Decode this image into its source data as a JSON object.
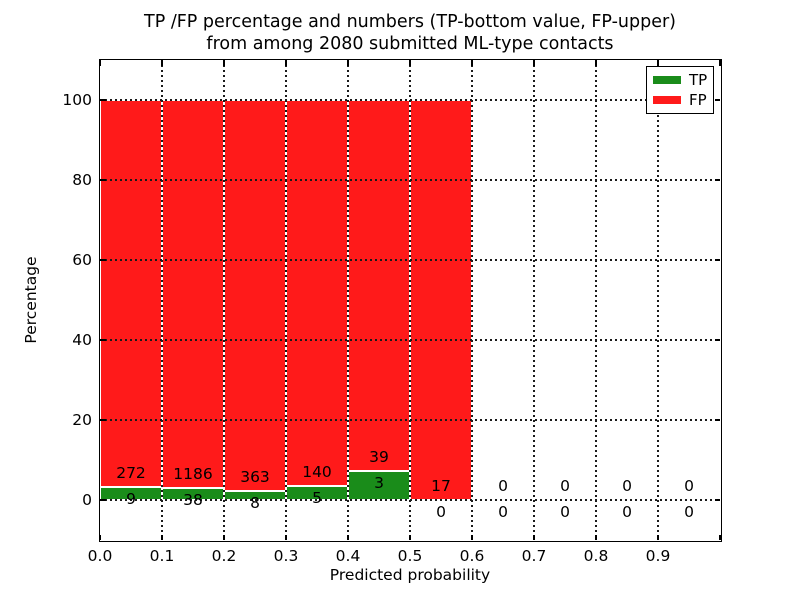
{
  "title": {
    "line1": "TP /FP percentage and numbers (TP-bottom value, FP-upper)",
    "line2": "from among 2080 submitted ML-type contacts"
  },
  "axes": {
    "xlabel": "Predicted probability",
    "ylabel": "Percentage",
    "x_ticks": [
      "0.0",
      "0.1",
      "0.2",
      "0.3",
      "0.4",
      "0.5",
      "0.6",
      "0.7",
      "0.8",
      "0.9"
    ],
    "y_ticks": [
      "0",
      "20",
      "40",
      "60",
      "80",
      "100"
    ]
  },
  "legend": {
    "entries": [
      {
        "label": "TP",
        "color": "#1a8c1a"
      },
      {
        "label": "FP",
        "color": "#ff1a1a"
      }
    ]
  },
  "colors": {
    "tp": "#1a8c1a",
    "fp": "#ff1a1a",
    "grid": "#1a1a1a",
    "background": "#ffffff"
  },
  "chart_data": {
    "type": "bar",
    "stacked": true,
    "title": "TP /FP percentage and numbers (TP-bottom value, FP-upper)\nfrom among 2080 submitted ML-type contacts",
    "xlabel": "Predicted probability",
    "ylabel": "Percentage",
    "xlim": [
      0,
      1
    ],
    "ylim": [
      -10,
      110
    ],
    "x_tick_step": 0.1,
    "y_tick_step": 20,
    "grid": true,
    "legend": [
      "TP",
      "FP"
    ],
    "legend_position": "upper right",
    "total_contacts": 2080,
    "bin_width": 0.1,
    "bins": [
      {
        "range": [
          0.0,
          0.1
        ],
        "tp_count": 9,
        "fp_count": 272,
        "tp_pct": 3.2,
        "fp_pct": 96.8,
        "bar_total_pct": 100
      },
      {
        "range": [
          0.1,
          0.2
        ],
        "tp_count": 38,
        "fp_count": 1186,
        "tp_pct": 3.1,
        "fp_pct": 96.9,
        "bar_total_pct": 100
      },
      {
        "range": [
          0.2,
          0.3
        ],
        "tp_count": 8,
        "fp_count": 363,
        "tp_pct": 2.16,
        "fp_pct": 97.84,
        "bar_total_pct": 100
      },
      {
        "range": [
          0.3,
          0.4
        ],
        "tp_count": 5,
        "fp_count": 140,
        "tp_pct": 3.45,
        "fp_pct": 96.55,
        "bar_total_pct": 100
      },
      {
        "range": [
          0.4,
          0.5
        ],
        "tp_count": 3,
        "fp_count": 39,
        "tp_pct": 7.14,
        "fp_pct": 92.86,
        "bar_total_pct": 100
      },
      {
        "range": [
          0.5,
          0.6
        ],
        "tp_count": 0,
        "fp_count": 17,
        "tp_pct": 0,
        "fp_pct": 100,
        "bar_total_pct": 100
      },
      {
        "range": [
          0.6,
          0.7
        ],
        "tp_count": 0,
        "fp_count": 0,
        "tp_pct": 0,
        "fp_pct": 0,
        "bar_total_pct": 0
      },
      {
        "range": [
          0.7,
          0.8
        ],
        "tp_count": 0,
        "fp_count": 0,
        "tp_pct": 0,
        "fp_pct": 0,
        "bar_total_pct": 0
      },
      {
        "range": [
          0.8,
          0.9
        ],
        "tp_count": 0,
        "fp_count": 0,
        "tp_pct": 0,
        "fp_pct": 0,
        "bar_total_pct": 0
      },
      {
        "range": [
          0.9,
          1.0
        ],
        "tp_count": 0,
        "fp_count": 0,
        "tp_pct": 0,
        "fp_pct": 0,
        "bar_total_pct": 0
      }
    ]
  }
}
